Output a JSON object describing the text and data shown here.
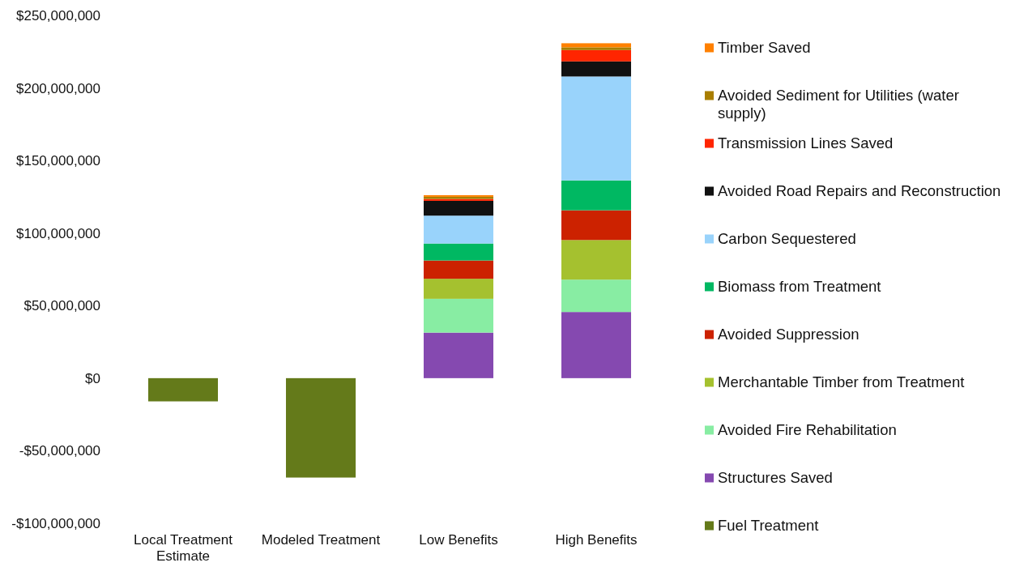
{
  "chart_data": {
    "type": "bar",
    "stacked": true,
    "categories": [
      "Local Treatment Estimate",
      "Modeled Treatment",
      "Low Benefits",
      "High Benefits"
    ],
    "series": [
      {
        "name": "Fuel Treatment",
        "color": "#647a1a",
        "values": [
          -16000000,
          -68500000,
          null,
          null
        ]
      },
      {
        "name": "Structures Saved",
        "color": "#8549b0",
        "values": [
          null,
          null,
          31400000,
          45600000
        ]
      },
      {
        "name": "Avoided Fire Rehabilitation",
        "color": "#88eda3",
        "values": [
          null,
          null,
          23300000,
          22300000
        ]
      },
      {
        "name": "Merchantable Timber from Treatment",
        "color": "#a5c12f",
        "values": [
          null,
          null,
          13800000,
          27300000
        ]
      },
      {
        "name": "Avoided Suppression",
        "color": "#cc2200",
        "values": [
          null,
          null,
          12600000,
          20500000
        ]
      },
      {
        "name": "Biomass from Treatment",
        "color": "#00b862",
        "values": [
          null,
          null,
          11700000,
          20600000
        ]
      },
      {
        "name": "Carbon Sequestered",
        "color": "#99d3fb",
        "values": [
          null,
          null,
          19200000,
          71600000
        ]
      },
      {
        "name": "Avoided Road Repairs and Reconstruction",
        "color": "#111111",
        "values": [
          null,
          null,
          10200000,
          10400000
        ]
      },
      {
        "name": "Transmission Lines Saved",
        "color": "#ff2500",
        "values": [
          null,
          null,
          1300000,
          7800000
        ]
      },
      {
        "name": "Avoided Sediment for Utilities (water supply)",
        "color": "#a97e00",
        "values": [
          null,
          null,
          1500000,
          1900000
        ]
      },
      {
        "name": "Timber Saved",
        "color": "#ff8000",
        "values": [
          null,
          null,
          1100000,
          2800000
        ]
      }
    ],
    "ylim": [
      -100000000,
      250000000
    ],
    "yticks": [
      {
        "value": -100000000,
        "label": "-$100,000,000"
      },
      {
        "value": -50000000,
        "label": "-$50,000,000"
      },
      {
        "value": 0,
        "label": "$0"
      },
      {
        "value": 50000000,
        "label": "$50,000,000"
      },
      {
        "value": 100000000,
        "label": "$100,000,000"
      },
      {
        "value": 150000000,
        "label": "$150,000,000"
      },
      {
        "value": 200000000,
        "label": "$200,000,000"
      },
      {
        "value": 250000000,
        "label": "$250,000,000"
      }
    ],
    "legend": "right"
  }
}
